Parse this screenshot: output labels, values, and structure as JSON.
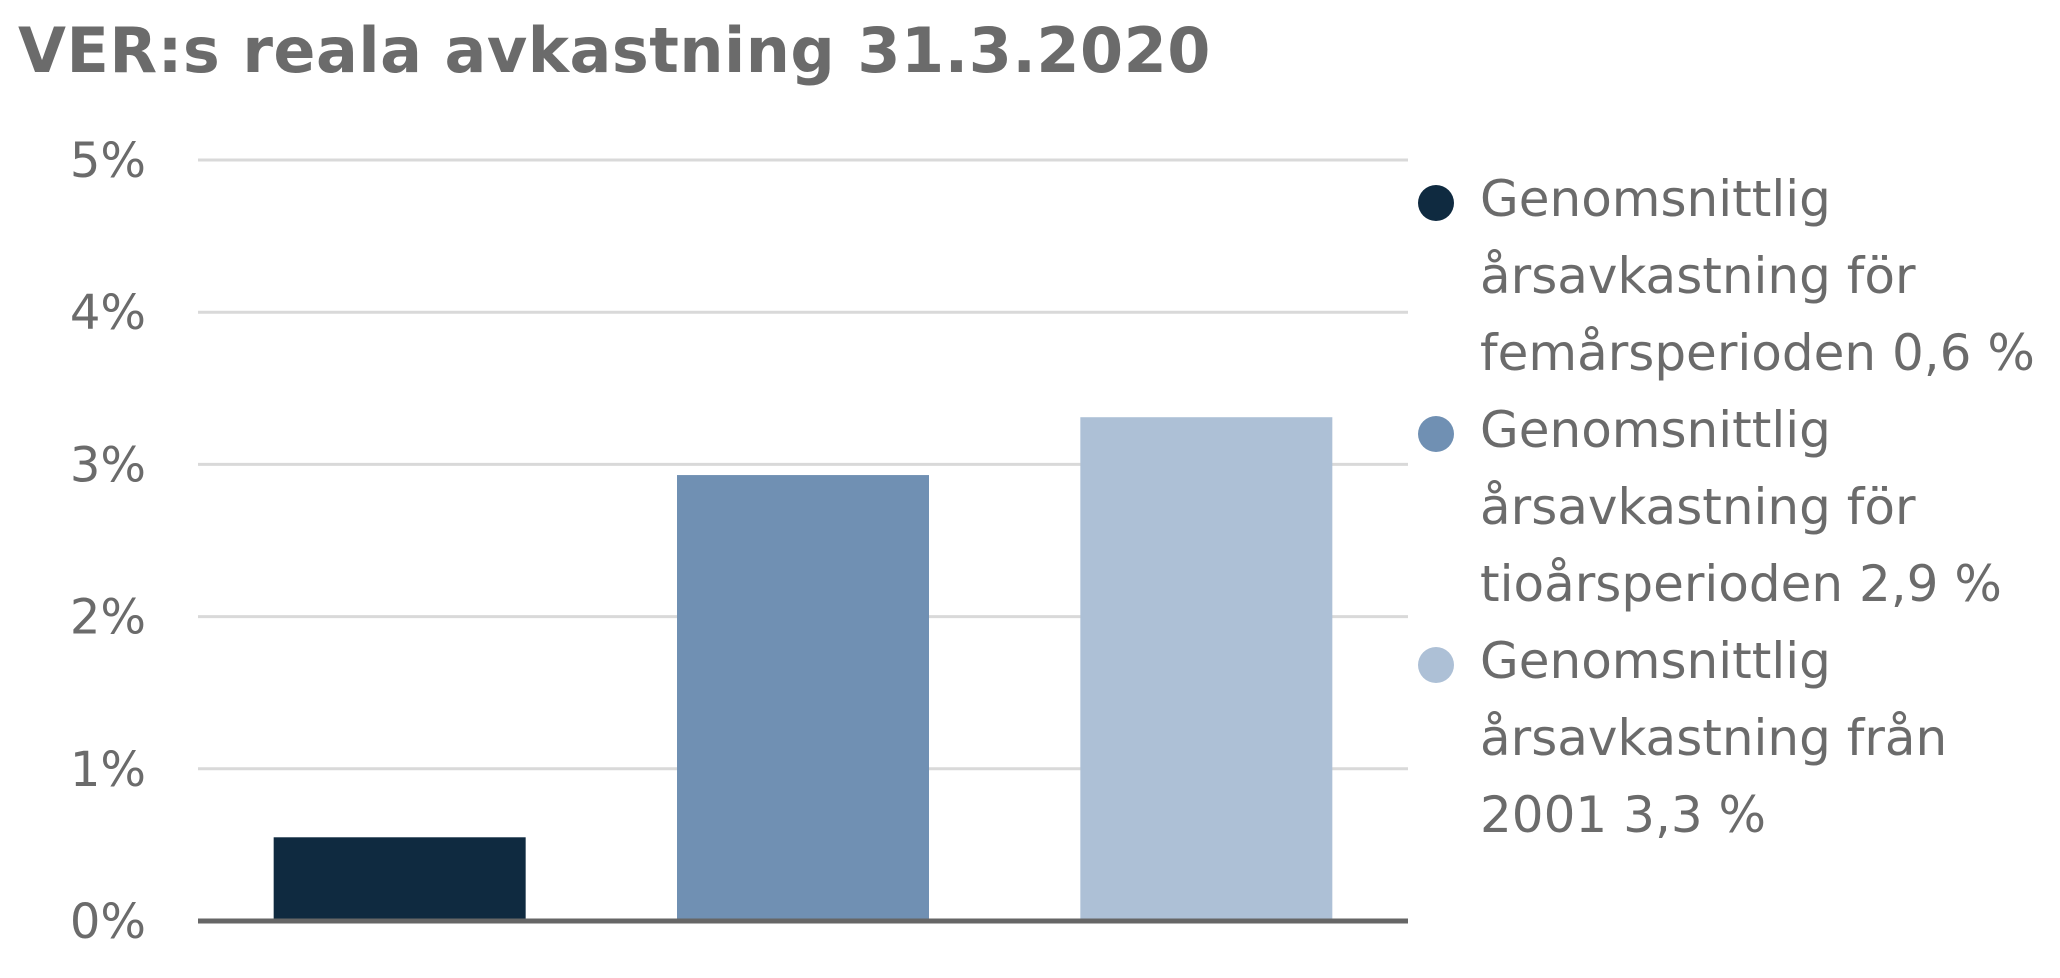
{
  "title": "VER:s reala avkastning 31.3.2020",
  "chart_data": {
    "type": "bar",
    "categories": [
      "",
      "",
      ""
    ],
    "values": [
      0.55,
      2.93,
      3.31
    ],
    "colors": [
      "#0f2a40",
      "#7090b3",
      "#adc0d6"
    ],
    "yticks": [
      "0%",
      "1%",
      "2%",
      "3%",
      "4%",
      "5%"
    ],
    "ylim": [
      0,
      5
    ],
    "grid": true,
    "legend_position": "right",
    "legend": [
      {
        "label": "Genomsnittlig årsavkastning för femårsperioden 0,6 %",
        "color": "#0f2a40"
      },
      {
        "label": "Genomsnittlig årsavkastning för tioårsperioden 2,9 %",
        "color": "#7090b3"
      },
      {
        "label": "Genomsnittlig årsavkastning från 2001 3,3 %",
        "color": "#adc0d6"
      }
    ]
  }
}
